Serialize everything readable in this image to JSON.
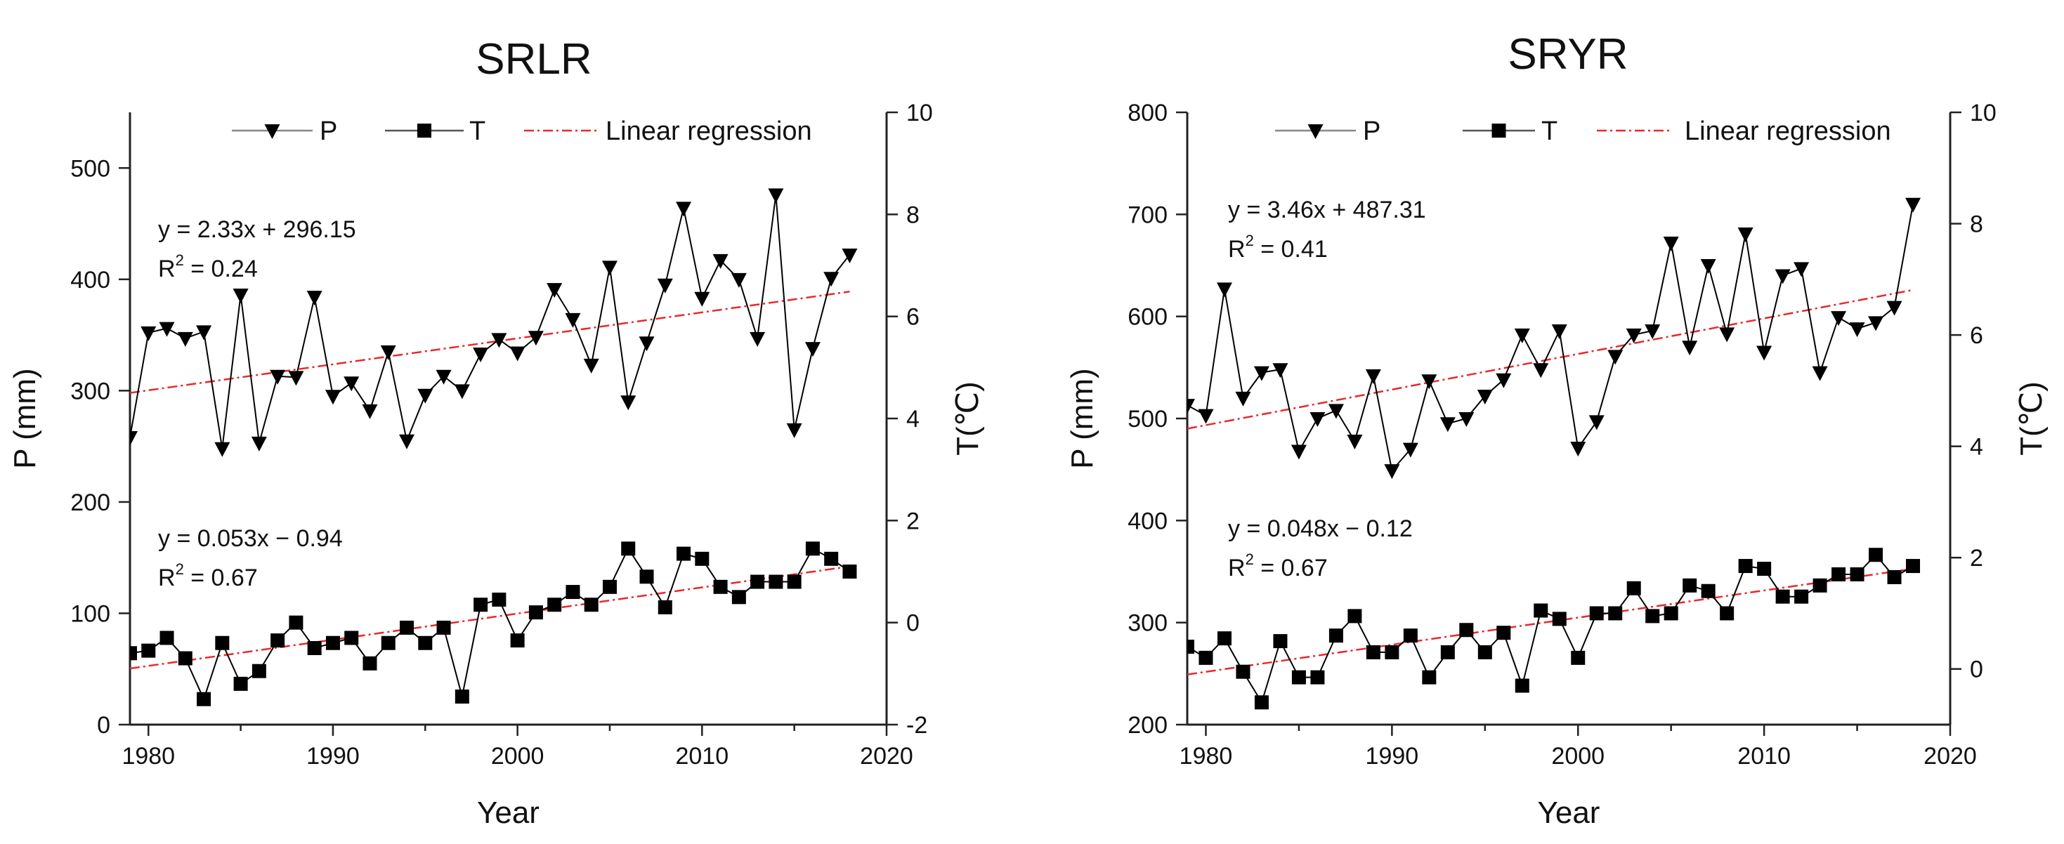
{
  "chart_data": [
    {
      "type": "line",
      "title": "SRLR",
      "xlabel": "Year",
      "ylabel_left": "P (mm)",
      "ylabel_right": "T(℃)",
      "xlim": [
        1979,
        2020
      ],
      "ylim_left": [
        0,
        550
      ],
      "ylim_right": [
        -2,
        10
      ],
      "x_ticks": [
        1980,
        1990,
        2000,
        2010,
        2020
      ],
      "y_left_ticks": [
        0,
        100,
        200,
        300,
        400,
        500
      ],
      "y_right_ticks": [
        -2,
        0,
        2,
        4,
        6,
        8,
        10
      ],
      "legend": {
        "placement": "top",
        "entries": [
          "P",
          "T",
          "Linear regression"
        ]
      },
      "x": [
        1979,
        1980,
        1981,
        1982,
        1983,
        1984,
        1985,
        1986,
        1987,
        1988,
        1989,
        1990,
        1991,
        1992,
        1993,
        1994,
        1995,
        1996,
        1997,
        1998,
        1999,
        2000,
        2001,
        2002,
        2003,
        2004,
        2005,
        2006,
        2007,
        2008,
        2009,
        2010,
        2011,
        2012,
        2013,
        2014,
        2015,
        2016,
        2017,
        2018
      ],
      "series": [
        {
          "name": "P",
          "axis": "left",
          "marker": "triangle-down",
          "color": "#000000",
          "values": [
            258,
            352,
            356,
            347,
            353,
            248,
            386,
            253,
            313,
            312,
            384,
            295,
            307,
            282,
            335,
            255,
            296,
            313,
            300,
            333,
            346,
            334,
            348,
            391,
            364,
            323,
            411,
            290,
            343,
            395,
            464,
            383,
            417,
            400,
            347,
            476,
            265,
            338,
            401,
            422
          ]
        },
        {
          "name": "T",
          "axis": "right",
          "marker": "square",
          "color": "#000000",
          "values": [
            -0.6,
            -0.55,
            -0.3,
            -0.7,
            -1.5,
            -0.4,
            -1.2,
            -0.95,
            -0.35,
            0.0,
            -0.5,
            -0.4,
            -0.3,
            -0.8,
            -0.4,
            -0.1,
            -0.4,
            -0.1,
            -1.45,
            0.35,
            0.45,
            -0.35,
            0.2,
            0.35,
            0.6,
            0.35,
            0.7,
            1.45,
            0.9,
            0.3,
            1.35,
            1.25,
            0.7,
            0.5,
            0.8,
            0.8,
            0.8,
            1.45,
            1.25,
            1.0
          ]
        }
      ],
      "regressions": [
        {
          "axis": "left",
          "x": [
            1979,
            2018
          ],
          "y": [
            298,
            389
          ],
          "color": "#e8292c",
          "equation": "y = 2.33x + 296.15",
          "r2_label": "R",
          "r2_sup": "2",
          "r2_value": " = 0.24"
        },
        {
          "axis": "right",
          "x": [
            1979,
            2018
          ],
          "y": [
            -0.9,
            1.1
          ],
          "color": "#e8292c",
          "equation": "y = 0.053x − 0.94",
          "r2_label": "R",
          "r2_sup": "2",
          "r2_value": " = 0.67"
        }
      ]
    },
    {
      "type": "line",
      "title": "SRYR",
      "xlabel": "Year",
      "ylabel_left": "P (mm)",
      "ylabel_right": "T(℃)",
      "xlim": [
        1979,
        2020
      ],
      "ylim_left": [
        200,
        800
      ],
      "ylim_right": [
        -1,
        10
      ],
      "x_ticks": [
        1980,
        1990,
        2000,
        2010,
        2020
      ],
      "y_left_ticks": [
        200,
        300,
        400,
        500,
        600,
        700,
        800
      ],
      "y_right_ticks": [
        0,
        2,
        4,
        6,
        8,
        10
      ],
      "legend": {
        "placement": "top",
        "entries": [
          "P",
          "T",
          "Linear regression"
        ]
      },
      "x": [
        1979,
        1980,
        1981,
        1982,
        1983,
        1984,
        1985,
        1986,
        1987,
        1988,
        1989,
        1990,
        1991,
        1992,
        1993,
        1994,
        1995,
        1996,
        1997,
        1998,
        1999,
        2000,
        2001,
        2002,
        2003,
        2004,
        2005,
        2006,
        2007,
        2008,
        2009,
        2010,
        2011,
        2012,
        2013,
        2014,
        2015,
        2016,
        2017,
        2018
      ],
      "series": [
        {
          "name": "P",
          "axis": "left",
          "marker": "triangle-down",
          "color": "#000000",
          "values": [
            513,
            503,
            627,
            520,
            545,
            548,
            468,
            500,
            508,
            478,
            542,
            449,
            470,
            537,
            495,
            500,
            522,
            538,
            582,
            548,
            586,
            471,
            497,
            561,
            582,
            586,
            672,
            570,
            650,
            583,
            681,
            565,
            640,
            647,
            545,
            599,
            588,
            594,
            609,
            710
          ]
        },
        {
          "name": "T",
          "axis": "right",
          "marker": "square",
          "color": "#000000",
          "values": [
            0.4,
            0.2,
            0.55,
            -0.05,
            -0.6,
            0.5,
            -0.15,
            -0.15,
            0.6,
            0.95,
            0.3,
            0.3,
            0.6,
            -0.15,
            0.3,
            0.7,
            0.3,
            0.65,
            -0.3,
            1.05,
            0.9,
            0.2,
            1.0,
            1.0,
            1.45,
            0.95,
            1.0,
            1.5,
            1.4,
            1.0,
            1.85,
            1.8,
            1.3,
            1.3,
            1.5,
            1.7,
            1.7,
            2.05,
            1.65,
            1.85
          ]
        }
      ],
      "regressions": [
        {
          "axis": "left",
          "x": [
            1979,
            2018
          ],
          "y": [
            490,
            626
          ],
          "color": "#e8292c",
          "equation": "y = 3.46x + 487.31",
          "r2_label": "R",
          "r2_sup": "2",
          "r2_value": " = 0.41"
        },
        {
          "axis": "right",
          "x": [
            1979,
            2018
          ],
          "y": [
            -0.1,
            1.8
          ],
          "color": "#e8292c",
          "equation": "y = 0.048x − 0.12",
          "r2_label": "R",
          "r2_sup": "2",
          "r2_value": " = 0.67"
        }
      ]
    }
  ]
}
